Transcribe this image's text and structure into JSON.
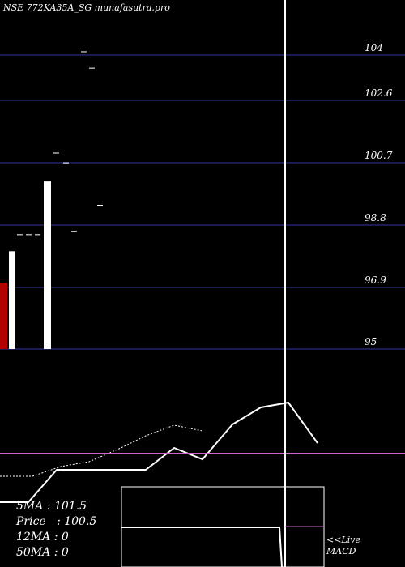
{
  "title": "NSE 772KA35A_SG munafasutra.pro",
  "info": {
    "ma5": "5MA : 101.5",
    "price": "Price   : 100.5",
    "ma12": "12MA : 0",
    "ma50": "50MA : 0"
  },
  "macd_label_1": "<<Live",
  "macd_label_2": "MACD",
  "chart_data": {
    "type": "bar",
    "title": "NSE 772KA35A_SG munafasutra.pro",
    "y_ticks": [
      104,
      102.6,
      100.7,
      98.8,
      96.9,
      95
    ],
    "ylim": [
      95,
      104
    ],
    "volume_bars": [
      {
        "color": "#b30000",
        "height": 0.19
      },
      {
        "color": "#ffffff",
        "height": 0.28
      },
      {
        "color": "#ffffff",
        "height": 0.48
      }
    ],
    "price_ticks": [
      98.5,
      98.5,
      98.5,
      101.0,
      100.7,
      98.6,
      104.1,
      103.6,
      99.4
    ],
    "colors": {
      "grid": "#1a1a55",
      "ma_line": "#cc66cc",
      "line": "#ffffff",
      "bear": "#b30000"
    }
  }
}
